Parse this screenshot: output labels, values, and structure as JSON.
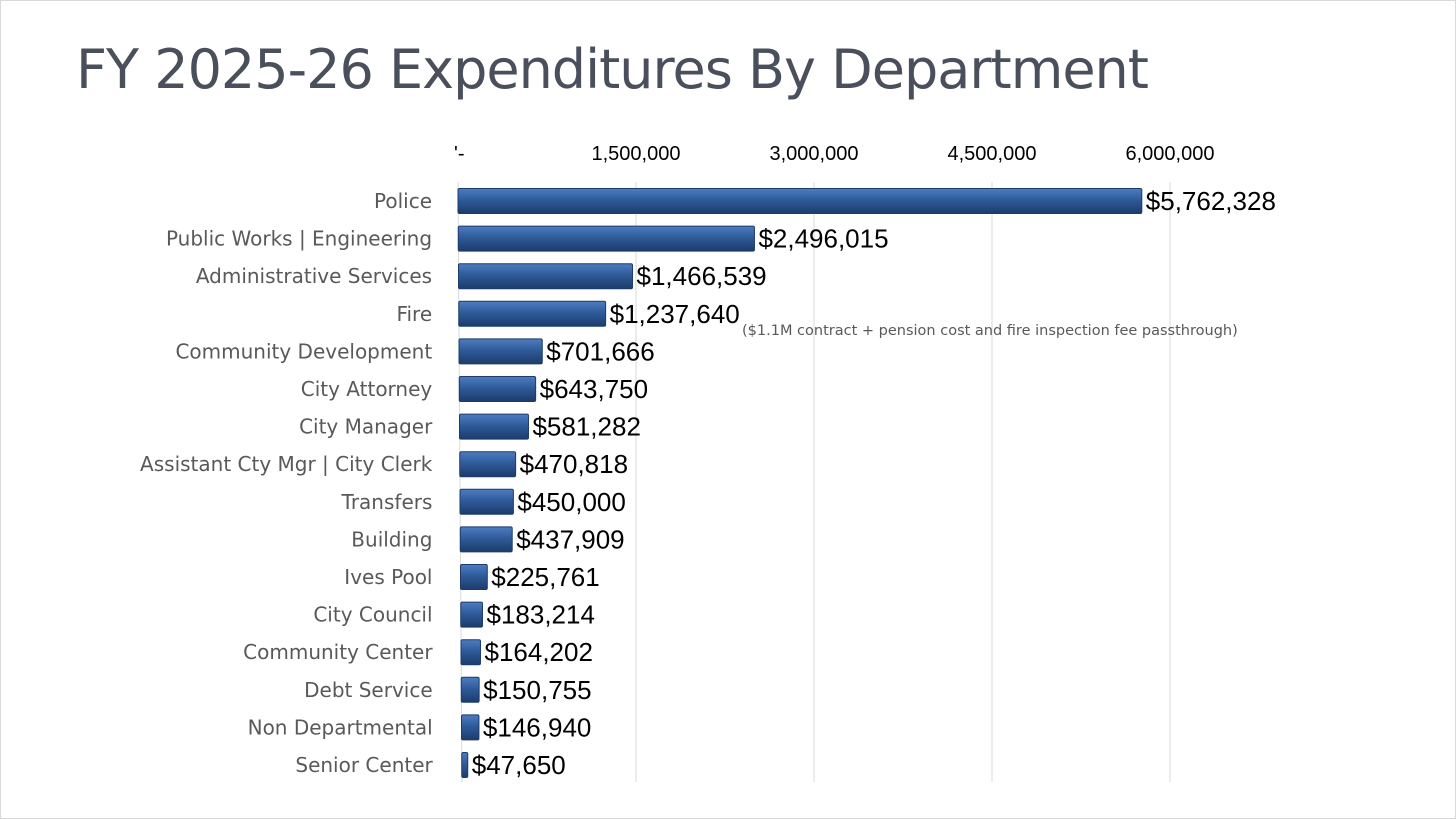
{
  "title": "FY 2025-26 Expenditures By Department",
  "colors": {
    "bar_fill": "#2f5b9a",
    "bar_edge": "#1c3c6b",
    "bar_highlight": "#4d7cc0",
    "gridline": "#d9d9d9",
    "title": "#4a4f5c"
  },
  "chart_data": {
    "type": "bar",
    "orientation": "horizontal",
    "title": "FY 2025-26 Expenditures By Department",
    "xlabel": "",
    "ylabel": "",
    "xlim": [
      0,
      6000000
    ],
    "x_ticks": [
      0,
      1500000,
      3000000,
      4500000,
      6000000
    ],
    "x_tick_labels": [
      "'-",
      "1,500,000",
      "3,000,000",
      "4,500,000",
      "6,000,000"
    ],
    "x_axis_position": "top",
    "grid": true,
    "legend": "none",
    "categories": [
      "Police",
      "Public Works | Engineering",
      "Administrative Services",
      "Fire",
      "Community Development",
      "City Attorney",
      "City Manager",
      "Assistant Cty Mgr | City Clerk",
      "Transfers",
      "Building",
      "Ives Pool",
      "City Council",
      "Community Center",
      "Debt Service",
      "Non Departmental",
      "Senior Center"
    ],
    "values": [
      5762328,
      2496015,
      1466539,
      1237640,
      701666,
      643750,
      581282,
      470818,
      450000,
      437909,
      225761,
      183214,
      164202,
      150755,
      146940,
      47650
    ],
    "data_labels": [
      "$5,762,328",
      "$2,496,015",
      "$1,466,539",
      "$1,237,640",
      "$701,666",
      "$643,750",
      "$581,282",
      "$470,818",
      "$450,000",
      "$437,909",
      "$225,761",
      "$183,214",
      "$164,202",
      "$150,755",
      "$146,940",
      "$47,650"
    ],
    "annotations": [
      {
        "category": "Fire",
        "text": "($1.1M contract + pension cost and fire inspection fee passthrough)"
      }
    ]
  }
}
